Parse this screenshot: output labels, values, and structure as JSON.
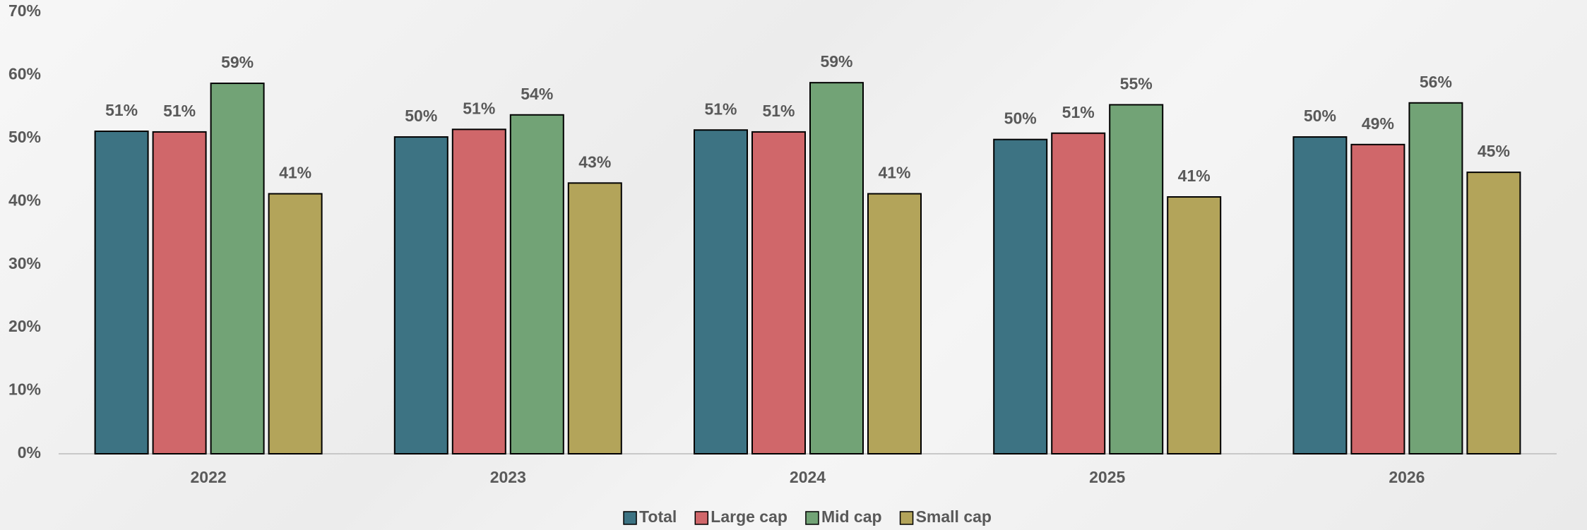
{
  "chart_data": {
    "type": "bar",
    "categories": [
      "2022",
      "2023",
      "2024",
      "2025",
      "2026"
    ],
    "series": [
      {
        "name": "Total",
        "color": "#3d7383",
        "values": [
          51.1,
          50.2,
          51.3,
          49.8,
          50.2
        ],
        "value_labels": [
          "51%",
          "50%",
          "51%",
          "50%",
          "50%"
        ]
      },
      {
        "name": "Large cap",
        "color": "#d0676a",
        "values": [
          51.0,
          51.4,
          51.0,
          50.8,
          49.0
        ],
        "value_labels": [
          "51%",
          "51%",
          "51%",
          "51%",
          "49%"
        ]
      },
      {
        "name": "Mid cap",
        "color": "#72a376",
        "values": [
          58.7,
          53.7,
          58.8,
          55.3,
          55.6
        ],
        "value_labels": [
          "59%",
          "54%",
          "59%",
          "55%",
          "56%"
        ]
      },
      {
        "name": "Small cap",
        "color": "#b3a45a",
        "values": [
          41.2,
          42.9,
          41.2,
          40.7,
          44.6
        ],
        "value_labels": [
          "41%",
          "43%",
          "41%",
          "41%",
          "45%"
        ]
      }
    ],
    "ylim": [
      0,
      70
    ],
    "yticks": [
      {
        "value": 0,
        "label": "0%"
      },
      {
        "value": 10,
        "label": "10%"
      },
      {
        "value": 20,
        "label": "20%"
      },
      {
        "value": 30,
        "label": "30%"
      },
      {
        "value": 40,
        "label": "40%"
      },
      {
        "value": 50,
        "label": "50%"
      },
      {
        "value": 60,
        "label": "60%"
      },
      {
        "value": 70,
        "label": "70%"
      }
    ],
    "grid": false,
    "legend": "bottom"
  }
}
